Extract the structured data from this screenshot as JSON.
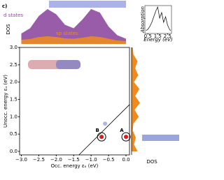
{
  "chart_data": [
    {
      "type": "scatter",
      "xlabel": "Occ. energy εₒ (eV)",
      "ylabel": "Unocc. energy εᵤ (eV)",
      "xlim": [
        -3.05,
        0.1
      ],
      "ylim": [
        -0.1,
        3.0
      ],
      "xticks": [
        {
          "value": -3.0,
          "label": "−3.0"
        },
        {
          "value": -2.5,
          "label": "−2.5"
        },
        {
          "value": -2.0,
          "label": "−2.0"
        },
        {
          "value": -1.5,
          "label": "−1.5"
        },
        {
          "value": -1.0,
          "label": "−1.0"
        },
        {
          "value": -0.5,
          "label": "−0.5"
        },
        {
          "value": 0,
          "label": "0.0"
        }
      ],
      "yticks": [
        {
          "value": 0,
          "label": "0.0"
        },
        0.5,
        {
          "value": 1,
          "label": "1.0"
        },
        1.5,
        {
          "value": 2,
          "label": "2.0"
        },
        2.5,
        {
          "value": 3,
          "label": "3.0"
        }
      ],
      "x": [
        -0.7,
        0.0,
        -0.6
      ],
      "values": [
        0.42,
        0.42,
        0.8
      ],
      "colors": [
        "#d62020",
        "#d62020",
        "#6070d0"
      ],
      "point_labels": [
        "B",
        "A",
        null
      ],
      "diagonal_offset": 1.25
    },
    {
      "type": "area",
      "ylabel": "DOS",
      "xlim": [
        -3.05,
        0.1
      ],
      "ylim": [
        0,
        1.1
      ],
      "x": [
        -3.0,
        -2.75,
        -2.5,
        -2.25,
        -2.0,
        -1.75,
        -1.5,
        -1.25,
        -1.0,
        -0.75,
        -0.5,
        -0.25,
        0.0
      ],
      "series": [
        {
          "name": "d states",
          "color": "#8e4a9e",
          "values": [
            0.3,
            0.45,
            0.8,
            1.0,
            0.85,
            0.55,
            0.45,
            0.7,
            1.0,
            0.9,
            0.5,
            0.25,
            0.15
          ]
        },
        {
          "name": "sp states",
          "color": "#f08a1c",
          "values": [
            0.12,
            0.14,
            0.2,
            0.22,
            0.2,
            0.16,
            0.15,
            0.18,
            0.22,
            0.2,
            0.15,
            0.1,
            0.08
          ]
        }
      ]
    },
    {
      "type": "hbar-area",
      "xlabel": "DOS",
      "xlim": [
        0,
        1
      ],
      "color": "#f08a1c",
      "y": [
        0.0,
        0.2,
        0.4,
        0.6,
        0.8,
        1.0,
        1.2,
        1.4,
        1.6,
        1.8,
        2.0,
        2.2,
        2.4,
        2.6,
        2.8,
        3.0
      ],
      "values": [
        0.5,
        0.2,
        0.35,
        0.1,
        0.15,
        0.6,
        0.25,
        0.7,
        0.3,
        0.65,
        0.2,
        0.55,
        0.3,
        0.5,
        0.15,
        0.1
      ]
    },
    {
      "type": "line",
      "xlabel": "Energy (eV)",
      "ylabel": "Absorption",
      "xlim": [
        0.2,
        2.9
      ],
      "ylim": [
        0,
        1
      ],
      "color": "#000000",
      "xticks": [
        0.5,
        1.5,
        2.5
      ],
      "x": [
        0.3,
        0.5,
        0.7,
        0.9,
        1.1,
        1.3,
        1.5,
        1.7,
        1.9,
        2.1,
        2.3,
        2.5,
        2.7,
        2.8
      ],
      "values": [
        0.1,
        0.15,
        0.25,
        0.4,
        0.6,
        0.8,
        0.95,
        0.55,
        0.75,
        0.4,
        0.6,
        0.3,
        0.15,
        0.1
      ]
    }
  ]
}
